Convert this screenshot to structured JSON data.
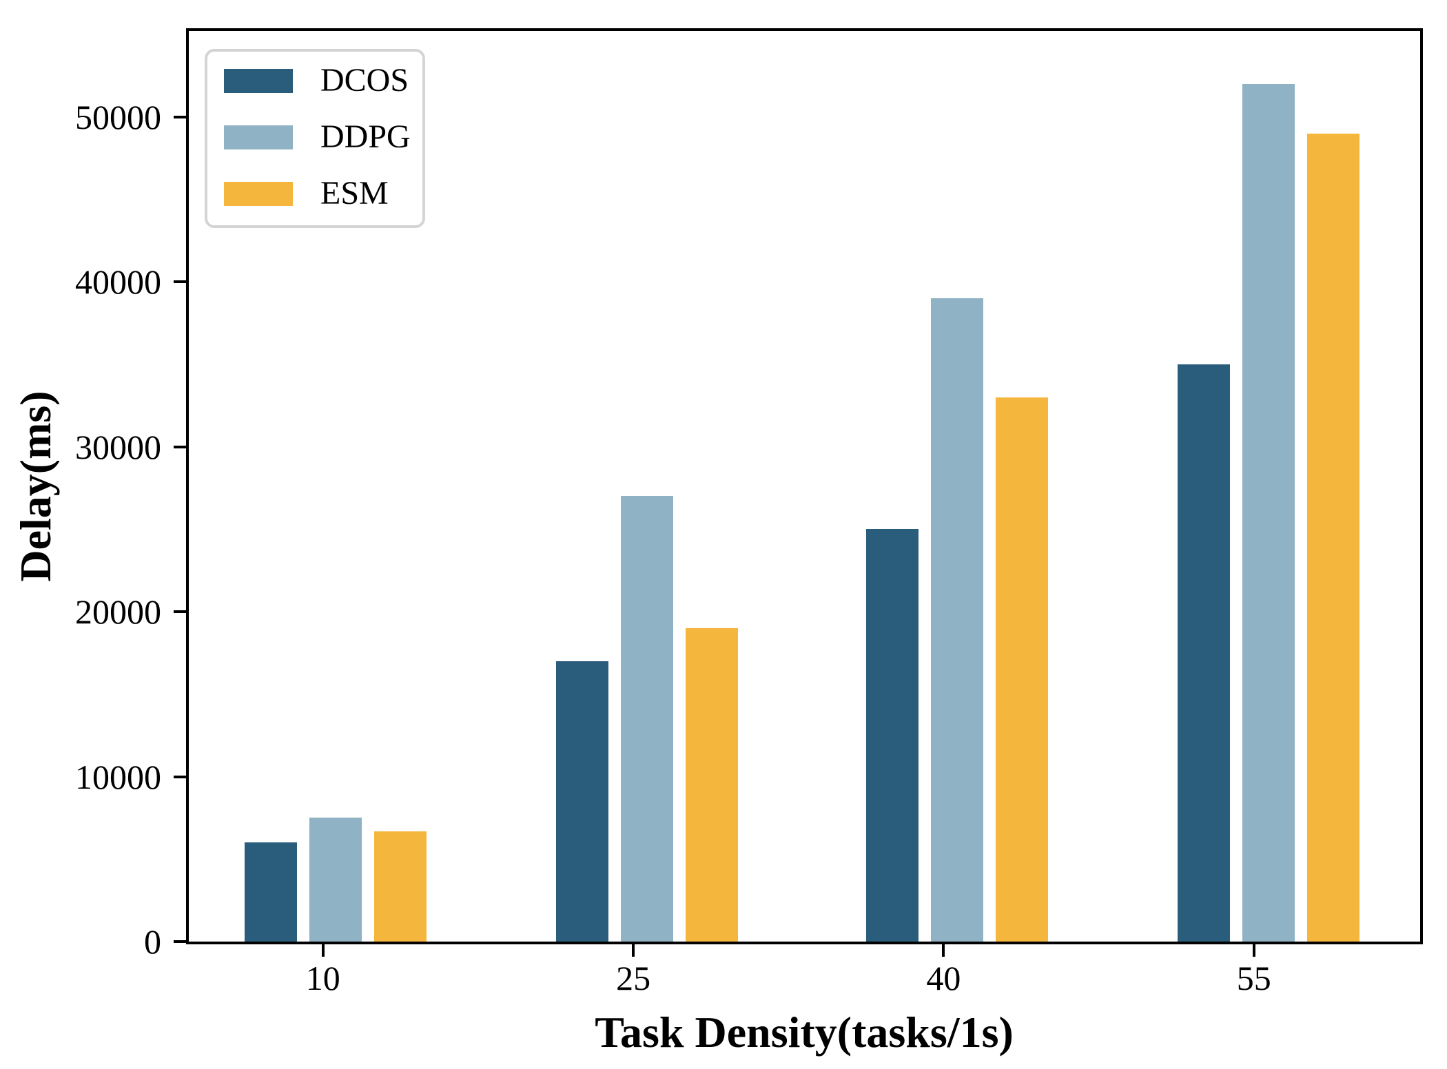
{
  "chart_data": {
    "type": "bar",
    "title": "",
    "xlabel": "Task Density(tasks/1s)",
    "ylabel": "Delay(ms)",
    "categories": [
      "10",
      "25",
      "40",
      "55"
    ],
    "series": [
      {
        "name": "DCOS",
        "color": "#2A5C7B",
        "values": [
          6000,
          17000,
          25000,
          35000
        ]
      },
      {
        "name": "DDPG",
        "color": "#8FB2C4",
        "values": [
          7500,
          27000,
          39000,
          52000
        ]
      },
      {
        "name": "ESM",
        "color": "#F5B63D",
        "values": [
          6700,
          19000,
          33000,
          49000
        ]
      }
    ],
    "yticks": [
      0,
      10000,
      20000,
      30000,
      40000,
      50000
    ],
    "ylim": [
      0,
      55200
    ],
    "legend_position": "upper left",
    "grid": false,
    "axis_color": "#000000",
    "legend_border_color": "#d4d4d4"
  }
}
